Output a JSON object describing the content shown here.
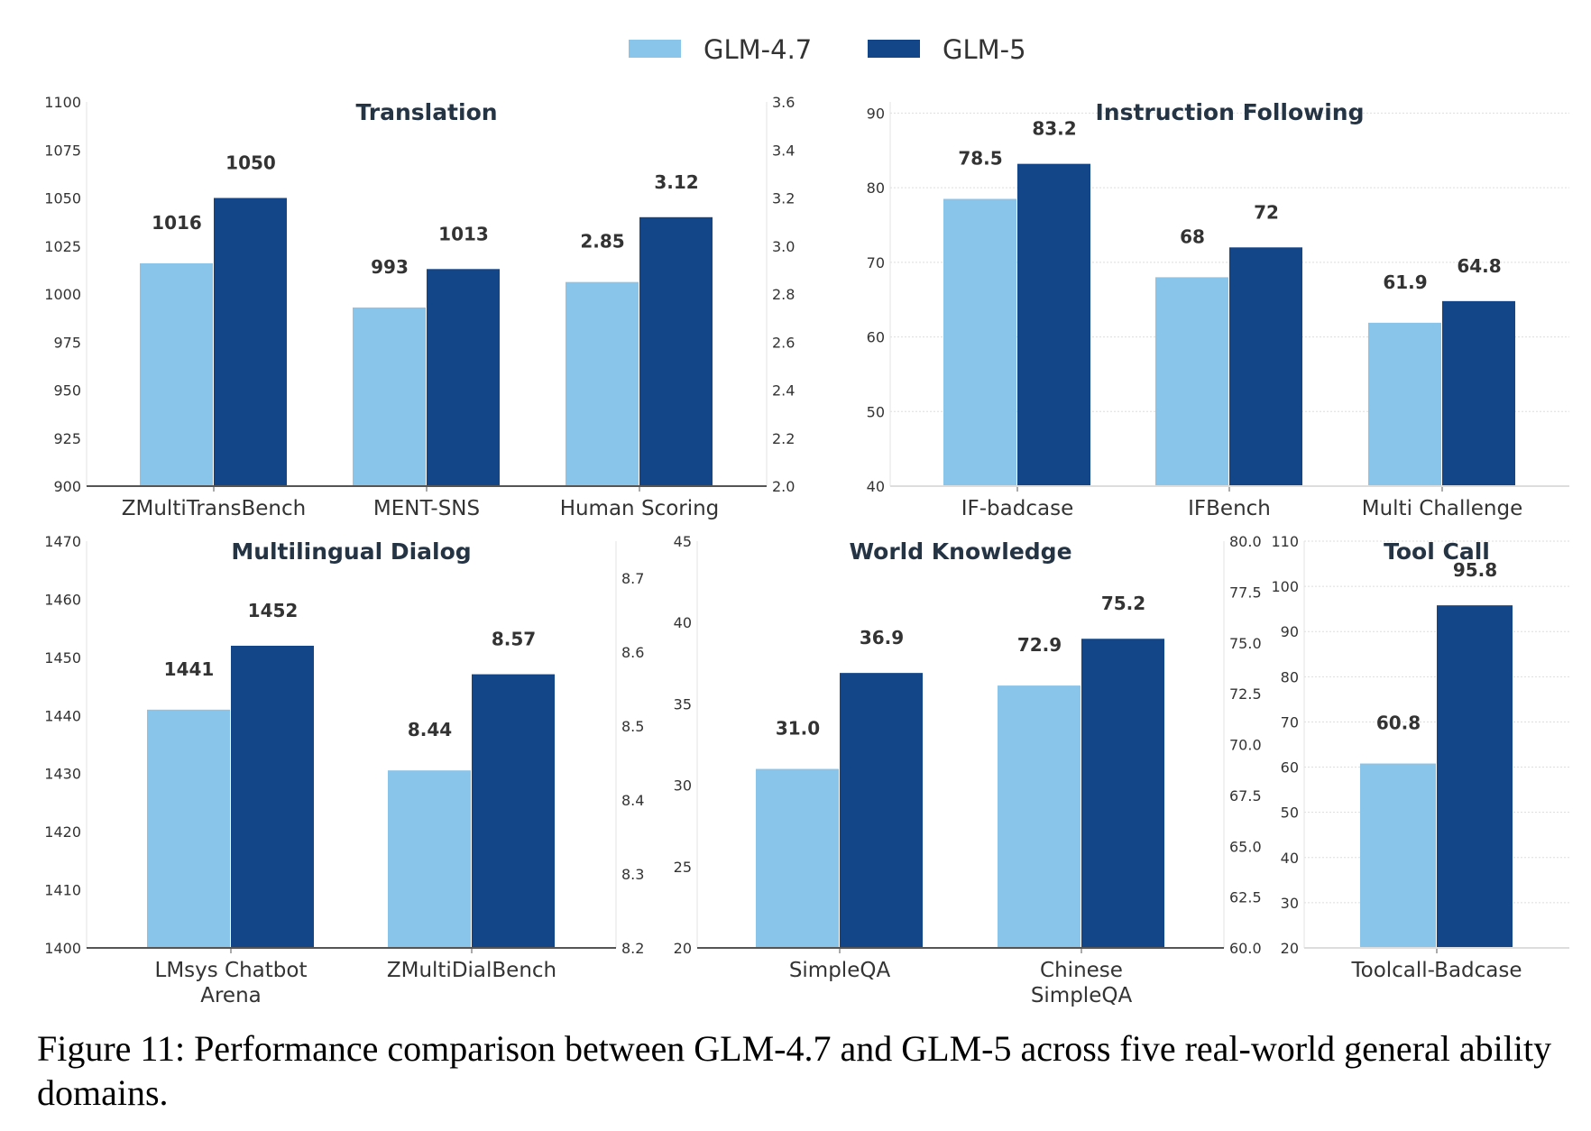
{
  "legend": [
    {
      "name": "GLM-4.7",
      "color": "#89C4EA"
    },
    {
      "name": "GLM-5",
      "color": "#134589"
    }
  ],
  "caption": "Figure 11: Performance comparison between GLM-4.7 and GLM-5 across five real-world general ability domains.",
  "chart_data": [
    {
      "type": "bar",
      "title": "Translation",
      "categories": [
        "ZMultiTransBench",
        "MENT-SNS",
        "Human Scoring"
      ],
      "category_axis": [
        "left",
        "left",
        "right"
      ],
      "series": [
        {
          "name": "GLM-4.7",
          "values": [
            1016,
            993,
            2.85
          ],
          "labels": [
            "1016",
            "993",
            "2.85"
          ]
        },
        {
          "name": "GLM-5",
          "values": [
            1050,
            1013,
            3.12
          ],
          "labels": [
            "1050",
            "1013",
            "3.12"
          ]
        }
      ],
      "ylim": [
        900,
        1100
      ],
      "yticks": [
        "900",
        "925",
        "950",
        "975",
        "1000",
        "1025",
        "1050",
        "1075",
        "1100"
      ],
      "y2lim": [
        2.0,
        3.6
      ],
      "y2ticks": [
        "2.0",
        "2.2",
        "2.4",
        "2.6",
        "2.8",
        "3.0",
        "3.2",
        "3.4",
        "3.6"
      ],
      "grid": false
    },
    {
      "type": "bar",
      "title": "Instruction Following",
      "categories": [
        "IF-badcase",
        "IFBench",
        "Multi Challenge"
      ],
      "category_axis": [
        "left",
        "left",
        "left"
      ],
      "series": [
        {
          "name": "GLM-4.7",
          "values": [
            78.5,
            68,
            61.9
          ],
          "labels": [
            "78.5",
            "68",
            "61.9"
          ]
        },
        {
          "name": "GLM-5",
          "values": [
            83.2,
            72,
            64.8
          ],
          "labels": [
            "83.2",
            "72",
            "64.8"
          ]
        }
      ],
      "ylim": [
        40,
        91.5
      ],
      "yticks": [
        "40",
        "50",
        "60",
        "70",
        "80",
        "90"
      ],
      "grid": true
    },
    {
      "type": "bar",
      "title": "Multilingual Dialog",
      "categories": [
        "LMsys Chatbot\nArena",
        "ZMultiDialBench"
      ],
      "category_axis": [
        "left",
        "right"
      ],
      "series": [
        {
          "name": "GLM-4.7",
          "values": [
            1441,
            8.44
          ],
          "labels": [
            "1441",
            "8.44"
          ]
        },
        {
          "name": "GLM-5",
          "values": [
            1452,
            8.57
          ],
          "labels": [
            "1452",
            "8.57"
          ]
        }
      ],
      "ylim": [
        1400,
        1470
      ],
      "yticks": [
        "1400",
        "1410",
        "1420",
        "1430",
        "1440",
        "1450",
        "1460",
        "1470"
      ],
      "y2lim": [
        8.2,
        8.75
      ],
      "y2ticks": [
        "8.2",
        "8.3",
        "8.4",
        "8.5",
        "8.6",
        "8.7"
      ],
      "grid": false
    },
    {
      "type": "bar",
      "title": "World Knowledge",
      "categories": [
        "SimpleQA",
        "Chinese\nSimpleQA"
      ],
      "category_axis": [
        "left",
        "right"
      ],
      "series": [
        {
          "name": "GLM-4.7",
          "values": [
            31.0,
            72.9
          ],
          "labels": [
            "31.0",
            "72.9"
          ]
        },
        {
          "name": "GLM-5",
          "values": [
            36.9,
            75.2
          ],
          "labels": [
            "36.9",
            "75.2"
          ]
        }
      ],
      "ylim": [
        20,
        45
      ],
      "yticks": [
        "20",
        "25",
        "30",
        "35",
        "40",
        "45"
      ],
      "y2lim": [
        60.0,
        80.0
      ],
      "y2ticks": [
        "60.0",
        "62.5",
        "65.0",
        "67.5",
        "70.0",
        "72.5",
        "75.0",
        "77.5",
        "80.0"
      ],
      "grid": false
    },
    {
      "type": "bar",
      "title": "Tool Call",
      "categories": [
        "Toolcall-Badcase"
      ],
      "category_axis": [
        "left"
      ],
      "series": [
        {
          "name": "GLM-4.7",
          "values": [
            60.8
          ],
          "labels": [
            "60.8"
          ]
        },
        {
          "name": "GLM-5",
          "values": [
            95.8
          ],
          "labels": [
            "95.8"
          ]
        }
      ],
      "ylim": [
        20,
        110
      ],
      "yticks": [
        "20",
        "30",
        "40",
        "50",
        "60",
        "70",
        "80",
        "90",
        "100",
        "110"
      ],
      "grid": true
    }
  ]
}
